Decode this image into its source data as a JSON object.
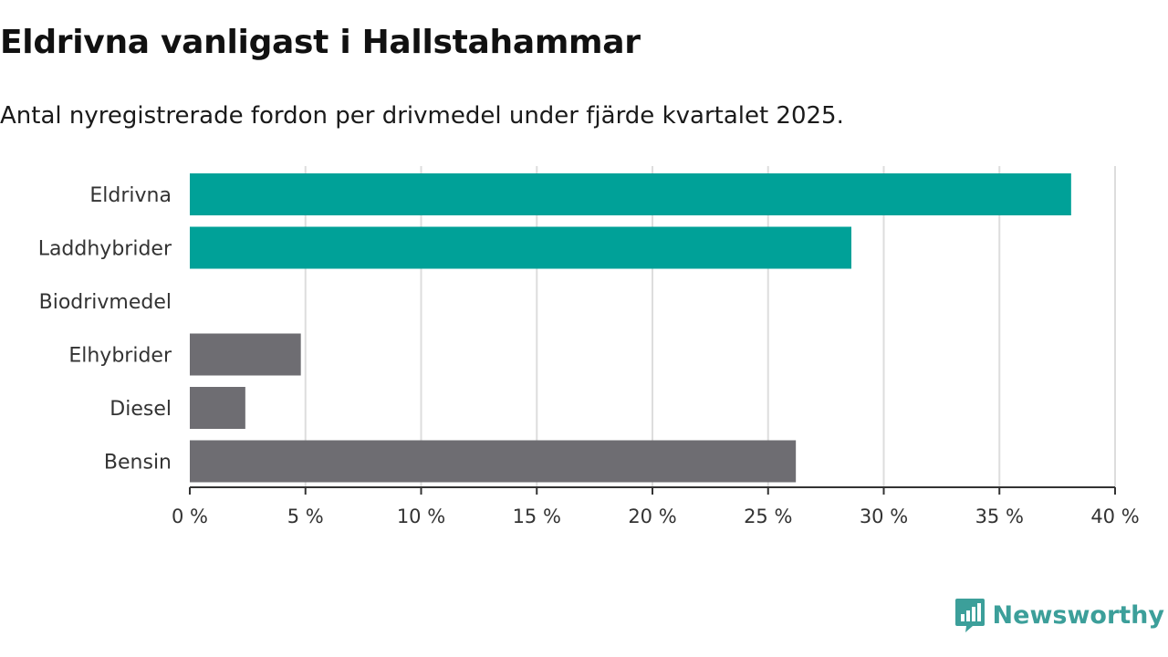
{
  "title": "Eldrivna vanligast i Hallstahammar",
  "subtitle": "Antal nyregistrerade fordon per drivmedel under fjärde kvartalet 2025.",
  "brand": {
    "name": "Newsworthy",
    "icon": "newsworthy-logo-icon"
  },
  "colors": {
    "highlight": "#00a198",
    "default": "#6e6d72",
    "grid": "#dddddd",
    "axis": "#333333"
  },
  "chart_data": {
    "type": "bar",
    "orientation": "horizontal",
    "title": "Eldrivna vanligast i Hallstahammar",
    "subtitle": "Antal nyregistrerade fordon per drivmedel under fjärde kvartalet 2025.",
    "categories": [
      "Eldrivna",
      "Laddhybrider",
      "Biodrivmedel",
      "Elhybrider",
      "Diesel",
      "Bensin"
    ],
    "values": [
      38.1,
      28.6,
      0,
      4.8,
      2.4,
      26.2
    ],
    "highlight": [
      true,
      true,
      true,
      false,
      false,
      false
    ],
    "xlim": [
      0,
      40
    ],
    "xticks": [
      0,
      5,
      10,
      15,
      20,
      25,
      30,
      35,
      40
    ],
    "tick_labels": [
      "0 %",
      "5 %",
      "10 %",
      "15 %",
      "20 %",
      "25 %",
      "30 %",
      "35 %",
      "40 %"
    ],
    "xlabel": "",
    "ylabel": "",
    "grid": true,
    "unit": "%"
  }
}
